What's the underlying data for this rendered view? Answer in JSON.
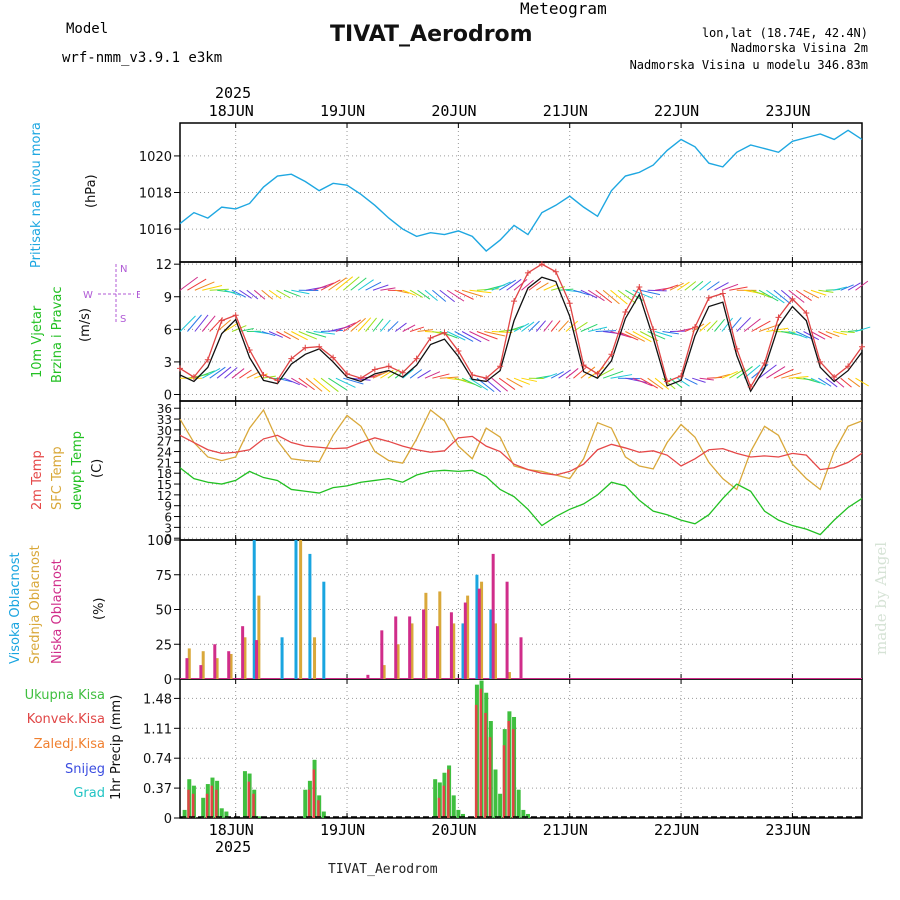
{
  "header": {
    "model_label": "Model",
    "model_name": "wrf-nmm_v3.9.1  e3km",
    "product": "Meteogram",
    "station": "TIVAT_Aerodrom",
    "lonlat": "lon,lat (18.74E, 42.4N)",
    "elevation": "Nadmorska Visina 2m",
    "model_elevation": "Nadmorska Visina u modelu 346.83m",
    "footer_station": "TIVAT_Aerodrom",
    "watermark": "made by Angel"
  },
  "time_axis": {
    "year": "2025",
    "days": [
      "18JUN",
      "19JUN",
      "20JUN",
      "21JUN",
      "22JUN",
      "23JUN"
    ],
    "start_hour": 0,
    "end_hour": 147
  },
  "colors": {
    "pressure": "#1ea7e1",
    "wind_ws": "#111111",
    "wind_gust": "#e04545",
    "t2m": "#e54848",
    "tsfc": "#d9a83a",
    "dewpt": "#22c022",
    "cloud_high": "#1aa5e0",
    "cloud_mid": "#d9a83a",
    "cloud_low": "#d02d8a",
    "precip_total": "#3fbf3f",
    "precip_conv": "#e04545",
    "precip_frz": "#f08030",
    "precip_snow": "#3b4de0",
    "precip_grad": "#22c4c4",
    "title_purple": "#b05ad6",
    "title_orange": "#e8b86a"
  },
  "chart_data": [
    {
      "type": "line",
      "title": "Pritisak na nivou mora",
      "ylabel": "(hPa)",
      "ylim": [
        1014.2,
        1021.8
      ],
      "yticks": [
        1016,
        1018,
        1020
      ],
      "series": [
        {
          "name": "pressure",
          "x": [
            0,
            3,
            6,
            9,
            12,
            15,
            18,
            21,
            24,
            27,
            30,
            33,
            36,
            39,
            42,
            45,
            48,
            51,
            54,
            57,
            60,
            63,
            66,
            69,
            72,
            75,
            78,
            81,
            84,
            87,
            90,
            93,
            96,
            99,
            102,
            105,
            108,
            111,
            114,
            117,
            120,
            123,
            126,
            129,
            132,
            135,
            138,
            141,
            144,
            147
          ],
          "values": [
            1016.3,
            1016.9,
            1016.6,
            1017.2,
            1017.1,
            1017.4,
            1018.3,
            1018.9,
            1019.0,
            1018.6,
            1018.1,
            1018.5,
            1018.4,
            1017.9,
            1017.3,
            1016.6,
            1016.0,
            1015.6,
            1015.8,
            1015.7,
            1015.9,
            1015.6,
            1014.8,
            1015.4,
            1016.2,
            1015.7,
            1016.9,
            1017.3,
            1017.8,
            1017.2,
            1016.7,
            1018.1,
            1018.9,
            1019.1,
            1019.5,
            1020.3,
            1020.9,
            1020.5,
            1019.6,
            1019.4,
            1020.2,
            1020.6,
            1020.4,
            1020.2,
            1020.8,
            1021.0,
            1021.2,
            1020.9,
            1021.4,
            1020.9
          ]
        }
      ]
    },
    {
      "type": "line",
      "title": "10m Vjetar Brzina i Pravac",
      "ylabel": "(m/s)",
      "direction_legend": {
        "w": "W",
        "e": "E",
        "n": "N",
        "s": "S"
      },
      "ylim": [
        -0.6,
        12.2
      ],
      "yticks": [
        0,
        3,
        6,
        9,
        12
      ],
      "series": [
        {
          "name": "wind speed",
          "x": [
            0,
            3,
            6,
            9,
            12,
            15,
            18,
            21,
            24,
            27,
            30,
            33,
            36,
            39,
            42,
            45,
            48,
            51,
            54,
            57,
            60,
            63,
            66,
            69,
            72,
            75,
            78,
            81,
            84,
            87,
            90,
            93,
            96,
            99,
            102,
            105,
            108,
            111,
            114,
            117,
            120,
            123,
            126,
            129,
            132,
            135,
            138,
            141,
            144,
            147
          ],
          "values": [
            1.8,
            1.2,
            2.5,
            5.6,
            6.9,
            3.4,
            1.3,
            1.0,
            2.8,
            3.7,
            4.2,
            3.0,
            1.6,
            1.2,
            1.9,
            2.2,
            1.6,
            2.7,
            4.6,
            5.1,
            3.5,
            1.4,
            1.2,
            2.2,
            6.8,
            9.8,
            10.8,
            10.4,
            7.2,
            2.1,
            1.5,
            3.1,
            7.0,
            9.2,
            5.2,
            0.8,
            1.3,
            5.4,
            8.1,
            8.5,
            3.6,
            0.3,
            2.4,
            6.3,
            8.1,
            6.8,
            2.5,
            1.2,
            2.2,
            3.9
          ]
        },
        {
          "name": "wind gust",
          "x": [
            0,
            3,
            6,
            9,
            12,
            15,
            18,
            21,
            24,
            27,
            30,
            33,
            36,
            39,
            42,
            45,
            48,
            51,
            54,
            57,
            60,
            63,
            66,
            69,
            72,
            75,
            78,
            81,
            84,
            87,
            90,
            93,
            96,
            99,
            102,
            105,
            108,
            111,
            114,
            117,
            120,
            123,
            126,
            129,
            132,
            135,
            138,
            141,
            144,
            147
          ],
          "values": [
            2.4,
            1.6,
            3.2,
            6.8,
            7.3,
            4.1,
            1.8,
            1.3,
            3.3,
            4.3,
            4.4,
            3.4,
            1.9,
            1.5,
            2.3,
            2.6,
            2.0,
            3.3,
            5.2,
            5.7,
            4.0,
            1.8,
            1.5,
            2.6,
            8.6,
            11.2,
            12.0,
            11.3,
            8.4,
            2.7,
            1.9,
            3.7,
            7.6,
            9.9,
            6.0,
            1.2,
            1.7,
            6.2,
            8.9,
            9.3,
            4.2,
            0.7,
            2.9,
            7.1,
            8.8,
            7.5,
            3.0,
            1.6,
            2.6,
            4.4
          ]
        }
      ]
    },
    {
      "type": "line",
      "title": "2m Temp / SFC Temp / dewpt Temp",
      "ylabel": "(C)",
      "ylim": [
        -0.5,
        38
      ],
      "yticks": [
        0,
        3,
        6,
        9,
        12,
        15,
        18,
        21,
        24,
        27,
        30,
        33,
        36
      ],
      "series": [
        {
          "name": "2m Temp",
          "x": [
            0,
            3,
            6,
            9,
            12,
            15,
            18,
            21,
            24,
            27,
            30,
            33,
            36,
            39,
            42,
            45,
            48,
            51,
            54,
            57,
            60,
            63,
            66,
            69,
            72,
            75,
            78,
            81,
            84,
            87,
            90,
            93,
            96,
            99,
            102,
            105,
            108,
            111,
            114,
            117,
            120,
            123,
            126,
            129,
            132,
            135,
            138,
            141,
            144,
            147
          ],
          "values": [
            28.5,
            26.5,
            24.5,
            23.5,
            23.8,
            24.5,
            27.5,
            28.5,
            26.5,
            25.5,
            25.2,
            24.8,
            25.0,
            26.5,
            27.8,
            26.8,
            25.5,
            24.5,
            23.8,
            24.2,
            27.8,
            28.2,
            25.5,
            24.0,
            20.5,
            19.0,
            18.0,
            17.5,
            18.5,
            20.5,
            24.5,
            26.0,
            25.0,
            23.8,
            24.2,
            23.0,
            20.0,
            22.0,
            24.5,
            24.8,
            23.5,
            22.5,
            22.8,
            22.5,
            23.5,
            23.0,
            19.0,
            19.5,
            21.0,
            23.5
          ]
        },
        {
          "name": "SFC Temp",
          "x": [
            0,
            3,
            6,
            9,
            12,
            15,
            18,
            21,
            24,
            27,
            30,
            33,
            36,
            39,
            42,
            45,
            48,
            51,
            54,
            57,
            60,
            63,
            66,
            69,
            72,
            75,
            78,
            81,
            84,
            87,
            90,
            93,
            96,
            99,
            102,
            105,
            108,
            111,
            114,
            117,
            120,
            123,
            126,
            129,
            132,
            135,
            138,
            141,
            144,
            147
          ],
          "values": [
            33.0,
            26.5,
            22.5,
            21.5,
            22.5,
            30.5,
            35.5,
            27.0,
            22.0,
            21.5,
            21.2,
            28.5,
            34.0,
            31.0,
            24.0,
            21.5,
            20.8,
            27.5,
            35.5,
            32.5,
            25.5,
            22.0,
            30.5,
            28.0,
            20.0,
            19.0,
            18.5,
            17.5,
            16.5,
            22.0,
            32.0,
            30.5,
            22.5,
            20.0,
            19.2,
            26.5,
            31.5,
            28.0,
            21.0,
            16.5,
            13.5,
            24.0,
            31.0,
            28.5,
            20.5,
            16.5,
            13.5,
            24.0,
            31.0,
            32.5
          ]
        },
        {
          "name": "dewpt Temp",
          "x": [
            0,
            3,
            6,
            9,
            12,
            15,
            18,
            21,
            24,
            27,
            30,
            33,
            36,
            39,
            42,
            45,
            48,
            51,
            54,
            57,
            60,
            63,
            66,
            69,
            72,
            75,
            78,
            81,
            84,
            87,
            90,
            93,
            96,
            99,
            102,
            105,
            108,
            111,
            114,
            117,
            120,
            123,
            126,
            129,
            132,
            135,
            138,
            141,
            144,
            147
          ],
          "values": [
            19.5,
            16.5,
            15.5,
            15.0,
            16.0,
            18.5,
            16.8,
            16.0,
            13.5,
            13.0,
            12.5,
            14.0,
            14.5,
            15.5,
            16.0,
            16.5,
            15.5,
            17.5,
            18.5,
            18.8,
            18.5,
            18.8,
            17.0,
            13.5,
            11.5,
            8.0,
            3.5,
            6.0,
            8.0,
            9.5,
            12.0,
            15.5,
            14.5,
            10.5,
            7.5,
            6.5,
            5.0,
            4.0,
            6.5,
            11.0,
            15.0,
            13.0,
            7.5,
            5.0,
            3.5,
            2.5,
            1.0,
            5.0,
            8.5,
            11.0
          ]
        }
      ]
    },
    {
      "type": "bar",
      "title": "Visoka / Srednja / Niska Oblacnost",
      "ylabel": "(%)",
      "ylim": [
        0,
        100
      ],
      "yticks": [
        0,
        25,
        50,
        75,
        100
      ],
      "series": [
        {
          "name": "Visoka Oblacnost",
          "x": [
            1,
            4,
            7,
            10,
            13,
            16,
            19,
            22,
            25,
            28,
            31,
            34,
            37,
            40,
            43,
            46,
            49,
            52,
            55,
            58,
            61,
            64,
            67,
            70,
            73
          ],
          "values": [
            0,
            0,
            0,
            0,
            0,
            100,
            0,
            30,
            100,
            90,
            70,
            0,
            0,
            0,
            0,
            0,
            0,
            0,
            0,
            0,
            40,
            75,
            50,
            0,
            0
          ]
        },
        {
          "name": "Srednja Oblacnost",
          "x": [
            2,
            5,
            8,
            11,
            14,
            17,
            20,
            23,
            26,
            29,
            32,
            35,
            38,
            41,
            44,
            47,
            50,
            53,
            56,
            59,
            62,
            65,
            68,
            71,
            74
          ],
          "values": [
            22,
            20,
            15,
            18,
            30,
            60,
            0,
            0,
            100,
            30,
            0,
            0,
            0,
            0,
            10,
            25,
            40,
            62,
            63,
            40,
            60,
            70,
            40,
            5,
            0
          ]
        },
        {
          "name": "Niska Oblacnost",
          "x": [
            1.5,
            4.5,
            7.5,
            10.5,
            13.5,
            16.5,
            19.5,
            22.5,
            25.5,
            28.5,
            31.5,
            34.5,
            37.5,
            40.5,
            43.5,
            46.5,
            49.5,
            52.5,
            55.5,
            58.5,
            61.5,
            64.5,
            67.5,
            70.5,
            73.5
          ],
          "values": [
            15,
            10,
            25,
            20,
            38,
            28,
            0,
            0,
            0,
            0,
            0,
            0,
            0,
            3,
            35,
            45,
            45,
            50,
            38,
            48,
            55,
            65,
            90,
            70,
            30
          ]
        }
      ]
    },
    {
      "type": "bar",
      "title": "1hr Precip",
      "ylabel": "(mm)",
      "ylim": [
        0,
        1.72
      ],
      "yticks": [
        0,
        0.37,
        0.74,
        1.11,
        1.48
      ],
      "legend": [
        "Ukupna Kisa",
        "Konvek.Kisa",
        "Zaledj.Kisa",
        "Snijeg",
        "Grad"
      ],
      "series": [
        {
          "name": "Ukupna Kisa",
          "x": [
            1,
            2,
            3,
            5,
            6,
            7,
            8,
            9,
            10,
            14,
            15,
            16,
            17,
            27,
            28,
            29,
            30,
            31,
            55,
            56,
            57,
            58,
            59,
            60,
            61,
            64,
            65,
            66,
            67,
            68,
            69,
            70,
            71,
            72,
            73,
            74,
            75
          ],
          "values": [
            0.1,
            0.48,
            0.4,
            0.25,
            0.42,
            0.5,
            0.46,
            0.12,
            0.08,
            0.58,
            0.55,
            0.35,
            0.02,
            0.35,
            0.46,
            0.72,
            0.28,
            0.08,
            0.48,
            0.44,
            0.56,
            0.65,
            0.28,
            0.1,
            0.05,
            1.65,
            1.7,
            1.55,
            1.2,
            0.6,
            0.3,
            1.1,
            1.32,
            1.25,
            0.35,
            0.1,
            0.05
          ]
        },
        {
          "name": "Konvek.Kisa",
          "x": [
            2,
            3,
            6,
            7,
            8,
            15,
            16,
            28,
            29,
            30,
            56,
            57,
            58,
            64,
            65,
            66,
            67,
            70,
            71,
            72
          ],
          "values": [
            0.35,
            0.3,
            0.3,
            0.4,
            0.35,
            0.45,
            0.3,
            0.35,
            0.6,
            0.22,
            0.25,
            0.4,
            0.6,
            1.4,
            1.6,
            1.3,
            1.0,
            0.9,
            1.2,
            1.1
          ]
        },
        {
          "name": "Zaledj.Kisa",
          "x": [],
          "values": []
        },
        {
          "name": "Snijeg",
          "x": [],
          "values": []
        },
        {
          "name": "Grad",
          "x": [],
          "values": []
        }
      ]
    }
  ]
}
